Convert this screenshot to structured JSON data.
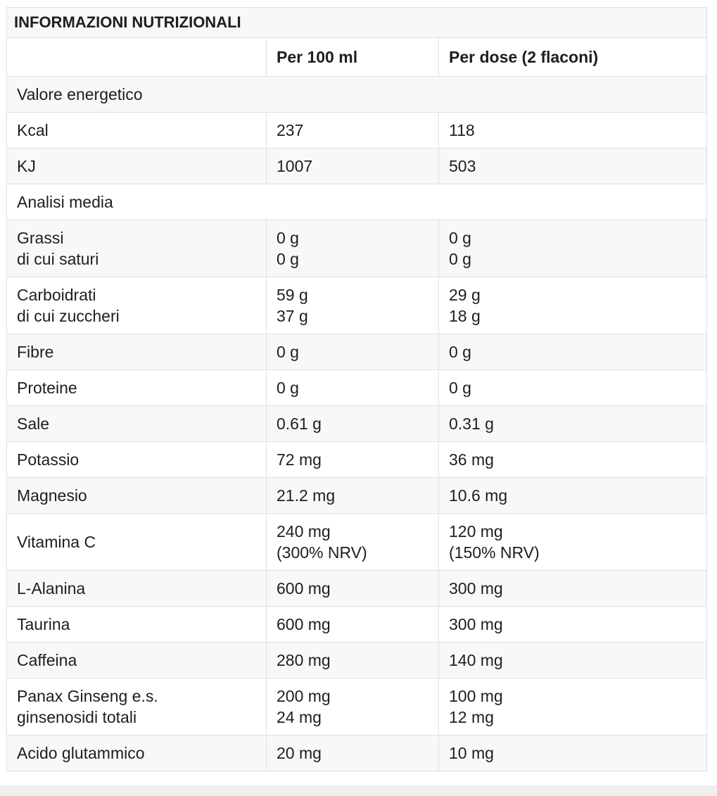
{
  "table": {
    "title": "INFORMAZIONI NUTRIZIONALI",
    "columns": {
      "label": "",
      "per_100ml": "Per 100 ml",
      "per_dose": "Per dose (2 flaconi)"
    },
    "rows": [
      {
        "type": "section",
        "label": "Valore energetico"
      },
      {
        "type": "data",
        "label": [
          "Kcal"
        ],
        "per_100ml": [
          "237"
        ],
        "per_dose": [
          "118"
        ]
      },
      {
        "type": "data",
        "label": [
          "KJ"
        ],
        "per_100ml": [
          "1007"
        ],
        "per_dose": [
          "503"
        ]
      },
      {
        "type": "section",
        "label": "Analisi media"
      },
      {
        "type": "data",
        "label": [
          "Grassi",
          "di cui saturi"
        ],
        "per_100ml": [
          "0 g",
          "0 g"
        ],
        "per_dose": [
          "0 g",
          "0 g"
        ]
      },
      {
        "type": "data",
        "label": [
          "Carboidrati",
          "di cui zuccheri"
        ],
        "per_100ml": [
          "59 g",
          "37 g"
        ],
        "per_dose": [
          "29 g",
          "18 g"
        ]
      },
      {
        "type": "data",
        "label": [
          "Fibre"
        ],
        "per_100ml": [
          "0 g"
        ],
        "per_dose": [
          "0 g"
        ]
      },
      {
        "type": "data",
        "label": [
          "Proteine"
        ],
        "per_100ml": [
          "0 g"
        ],
        "per_dose": [
          "0 g"
        ]
      },
      {
        "type": "data",
        "label": [
          "Sale"
        ],
        "per_100ml": [
          "0.61 g"
        ],
        "per_dose": [
          "0.31 g"
        ]
      },
      {
        "type": "data",
        "label": [
          "Potassio"
        ],
        "per_100ml": [
          "72 mg"
        ],
        "per_dose": [
          "36 mg"
        ]
      },
      {
        "type": "data",
        "label": [
          "Magnesio"
        ],
        "per_100ml": [
          "21.2 mg"
        ],
        "per_dose": [
          "10.6 mg"
        ]
      },
      {
        "type": "data",
        "label": [
          "Vitamina C"
        ],
        "per_100ml": [
          "240 mg",
          "(300% NRV)"
        ],
        "per_dose": [
          "120 mg",
          "(150% NRV)"
        ]
      },
      {
        "type": "data",
        "label": [
          "L-Alanina"
        ],
        "per_100ml": [
          "600 mg"
        ],
        "per_dose": [
          "300 mg"
        ]
      },
      {
        "type": "data",
        "label": [
          "Taurina"
        ],
        "per_100ml": [
          "600 mg"
        ],
        "per_dose": [
          "300 mg"
        ]
      },
      {
        "type": "data",
        "label": [
          "Caffeina"
        ],
        "per_100ml": [
          "280 mg"
        ],
        "per_dose": [
          "140 mg"
        ]
      },
      {
        "type": "data",
        "label": [
          "Panax Ginseng e.s.",
          "ginsenosidi totali"
        ],
        "per_100ml": [
          "200 mg",
          "24 mg"
        ],
        "per_dose": [
          "100 mg",
          "12 mg"
        ]
      },
      {
        "type": "data",
        "label": [
          "Acido glutammico"
        ],
        "per_100ml": [
          "20 mg"
        ],
        "per_dose": [
          "10 mg"
        ]
      }
    ]
  },
  "colors": {
    "text": "#1e1e1e",
    "border": "#e0e0e0",
    "row_alt": "#f8f8f8",
    "row_main": "#ffffff",
    "band": "#efefef",
    "page_bg": "#ffffff"
  }
}
